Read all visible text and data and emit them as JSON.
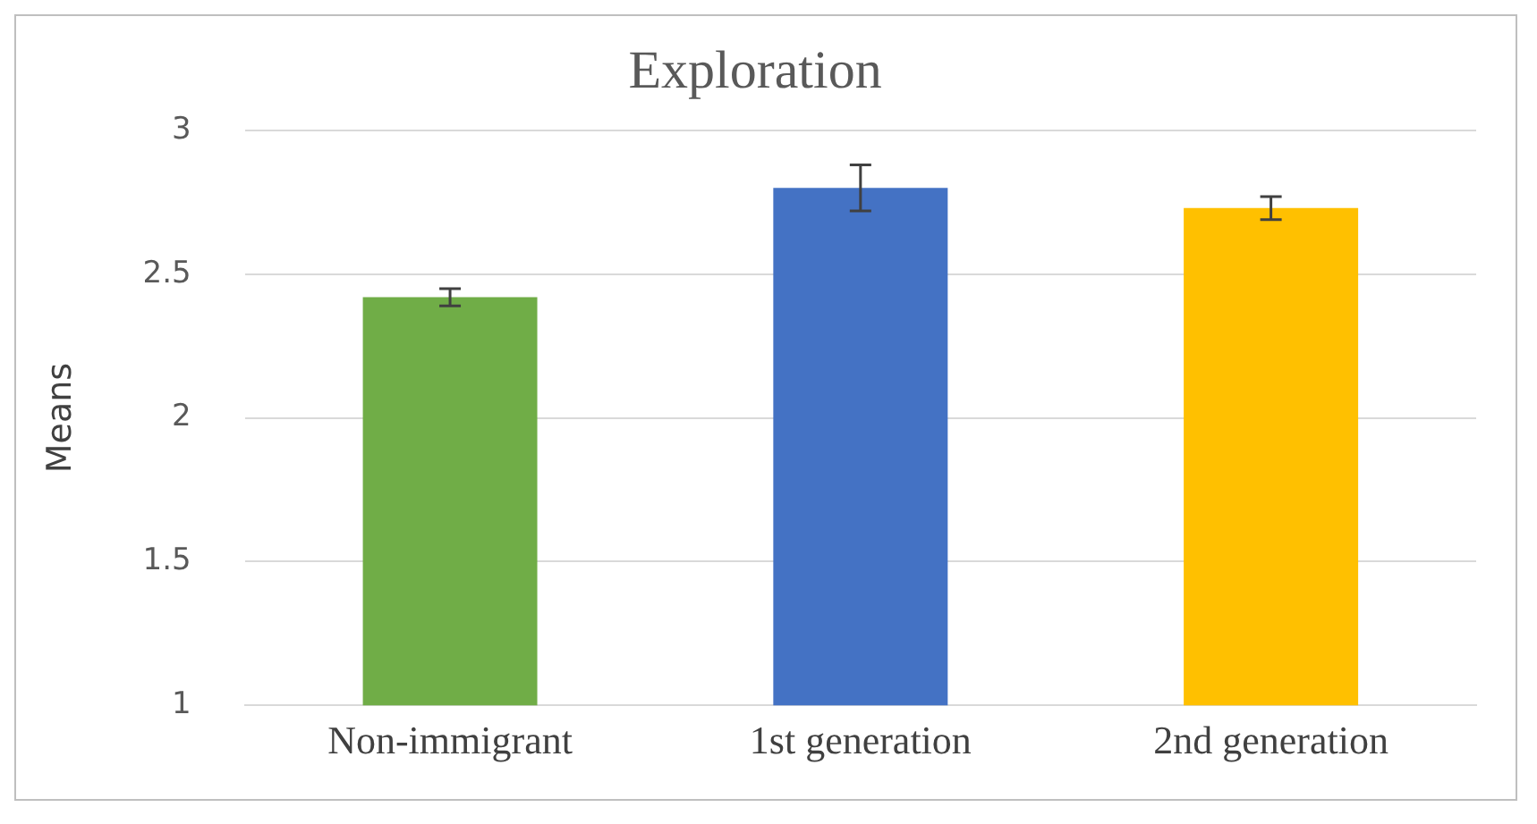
{
  "chart_data": {
    "type": "bar",
    "title": "Exploration",
    "ylabel": "Means",
    "categories": [
      "Non-immigrant",
      "1st generation",
      "2nd generation"
    ],
    "values": [
      2.42,
      2.8,
      2.73
    ],
    "colors": [
      "#70ad47",
      "#4472c4",
      "#ffc000"
    ],
    "errors": [
      0.03,
      0.08,
      0.04
    ],
    "ylim": [
      1,
      3
    ],
    "yticks": [
      1,
      1.5,
      2,
      2.5,
      3
    ],
    "grid": "y"
  }
}
